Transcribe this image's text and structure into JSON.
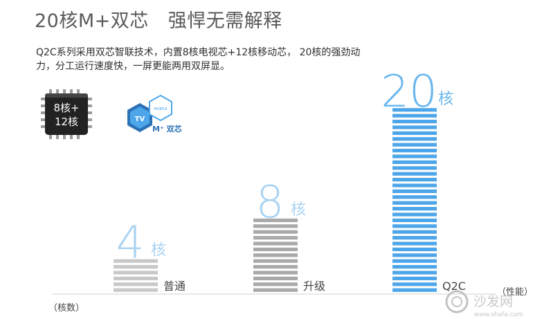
{
  "header": {
    "title": "20核M+双芯",
    "subtitle": "强悍无需解释"
  },
  "description": "Q2C系列采用双芯智联技术，内置8核电视芯+12核移动芯， 20核的强劲动力，分工运行速度快，一屏更能两用双屏显。",
  "badges": {
    "chip_line1": "8核+",
    "chip_line2": "12核",
    "mobile_text": "MOBILE",
    "tv_text": "TV",
    "mplus_label": "M⁺ 双芯"
  },
  "chart_data": {
    "type": "bar",
    "categories": [
      "普通",
      "升级",
      "Q2C"
    ],
    "values": [
      4,
      8,
      20
    ],
    "value_unit": "核",
    "xlabel": "（性能）",
    "ylabel": "（核数）",
    "colors": [
      "#c8c8c8",
      "#a9a9a9",
      "#4da6ea"
    ],
    "value_label_colors": [
      "#a9d3f2",
      "#a9d3f2",
      "#6ab7ee"
    ]
  },
  "watermark": {
    "text": "沙发网",
    "url": "www.shafa.com"
  }
}
